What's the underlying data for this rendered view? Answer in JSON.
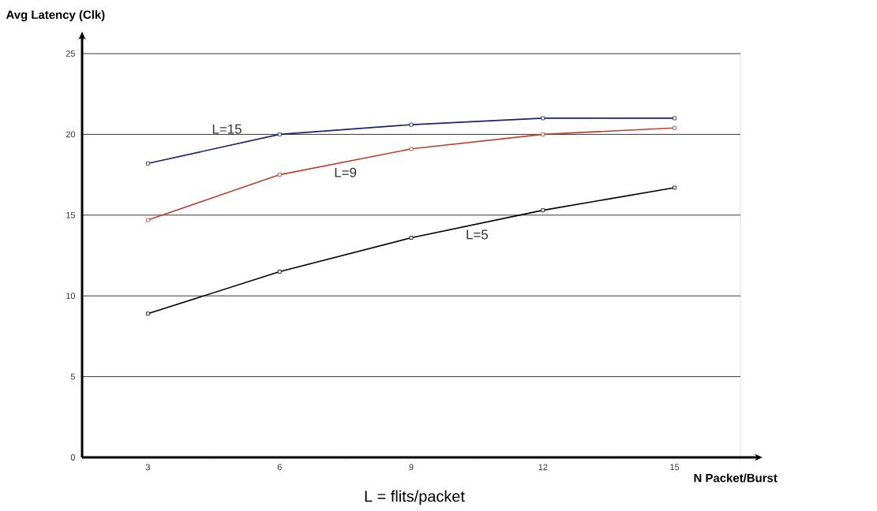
{
  "chart_data": {
    "type": "line",
    "xlabel": "N Packet/Burst",
    "ylabel": "Avg Latency  (Clk)",
    "annotations": [
      "L = flits/packet"
    ],
    "categories": [
      "3",
      "6",
      "9",
      "12",
      "15"
    ],
    "series": [
      {
        "name": "L=15",
        "color": "#1c2366",
        "values": [
          18.2,
          20.0,
          20.6,
          21.0,
          21.0
        ]
      },
      {
        "name": "L=9",
        "color": "#b8402e",
        "values": [
          14.7,
          17.5,
          19.1,
          20.0,
          20.4
        ]
      },
      {
        "name": "L=5",
        "color": "#000000",
        "values": [
          8.9,
          11.5,
          13.6,
          15.3,
          16.7
        ]
      }
    ],
    "ylim": [
      0,
      25
    ],
    "yticks": [
      0,
      5,
      10,
      15,
      20,
      25
    ],
    "grid": "y",
    "marker": "square",
    "line_style": "solid"
  }
}
